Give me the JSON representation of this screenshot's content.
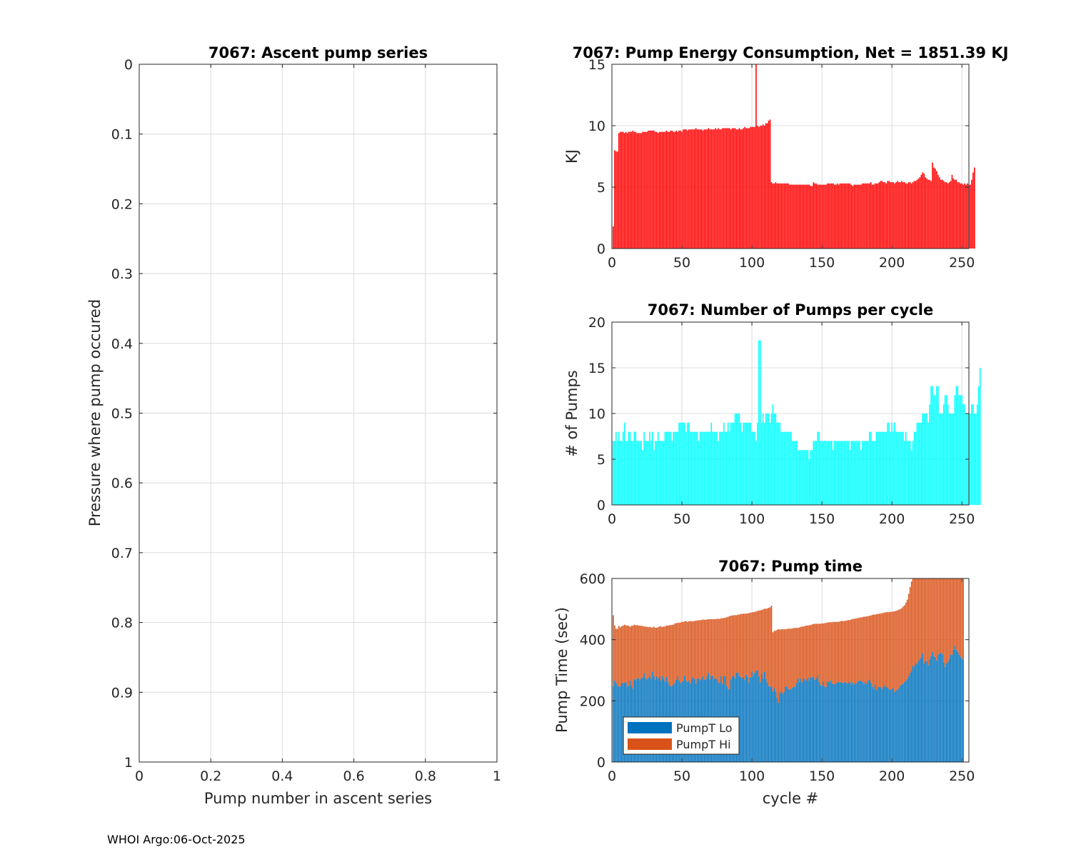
{
  "footer": "WHOI Argo:06-Oct-2025",
  "chart_data": [
    {
      "id": "ascent",
      "type": "line",
      "title": "7067: Ascent pump series",
      "xlabel": "Pump number in ascent series",
      "ylabel": "Pressure where pump occured",
      "xlim": [
        0,
        1
      ],
      "ylim": [
        0,
        1
      ],
      "y_reversed": true,
      "xticks": [
        "0",
        "0.2",
        "0.4",
        "0.6",
        "0.8",
        "1"
      ],
      "yticks": [
        "0",
        "0.1",
        "0.2",
        "0.3",
        "0.4",
        "0.5",
        "0.6",
        "0.7",
        "0.8",
        "0.9",
        "1"
      ],
      "grid": true,
      "series": []
    },
    {
      "id": "energy",
      "type": "bar",
      "title": "7067: Pump Energy Consumption,  Net = 1851.39 KJ",
      "xlabel": "",
      "ylabel": "KJ",
      "xlim": [
        0,
        255
      ],
      "ylim": [
        0,
        15
      ],
      "xticks": [
        "0",
        "50",
        "100",
        "150",
        "200",
        "250"
      ],
      "yticks": [
        "0",
        "5",
        "10",
        "15"
      ],
      "grid": true,
      "color": "#ff0000",
      "x_start": 1,
      "values": [
        1.8,
        8.0,
        7.9,
        7.9,
        9.4,
        9.5,
        9.5,
        9.5,
        9.4,
        9.5,
        9.4,
        9.5,
        9.5,
        9.5,
        9.6,
        9.5,
        9.5,
        9.4,
        9.4,
        9.4,
        9.4,
        9.5,
        9.5,
        9.5,
        9.5,
        9.6,
        9.6,
        9.6,
        9.6,
        9.6,
        9.5,
        9.5,
        9.4,
        9.5,
        9.5,
        9.5,
        9.5,
        9.5,
        9.6,
        9.5,
        9.5,
        9.6,
        9.6,
        9.5,
        9.5,
        9.6,
        9.5,
        9.6,
        9.6,
        9.5,
        9.7,
        9.7,
        9.7,
        9.6,
        9.7,
        9.7,
        9.7,
        9.7,
        9.7,
        9.8,
        9.7,
        9.7,
        9.7,
        9.7,
        9.6,
        9.7,
        9.7,
        9.7,
        9.8,
        9.7,
        9.7,
        9.7,
        9.7,
        9.8,
        9.7,
        9.8,
        9.7,
        9.7,
        9.8,
        9.8,
        9.8,
        9.8,
        9.8,
        9.8,
        9.7,
        9.8,
        9.8,
        9.8,
        9.7,
        9.7,
        9.8,
        9.7,
        9.7,
        9.8,
        9.9,
        9.8,
        9.8,
        9.8,
        9.9,
        9.9,
        9.9,
        9.9,
        15.2,
        10.0,
        9.9,
        10.0,
        10.0,
        10.1,
        10.0,
        10.2,
        10.2,
        10.4,
        10.5,
        5.4,
        5.3,
        5.3,
        5.4,
        5.3,
        5.3,
        5.3,
        5.3,
        5.3,
        5.3,
        5.3,
        5.3,
        5.3,
        5.2,
        5.2,
        5.2,
        5.2,
        5.2,
        5.2,
        5.2,
        5.2,
        5.2,
        5.2,
        5.2,
        5.2,
        5.2,
        5.2,
        5.2,
        5.1,
        5.1,
        5.4,
        5.3,
        5.3,
        5.2,
        5.2,
        5.2,
        5.2,
        5.2,
        5.2,
        5.2,
        5.3,
        5.3,
        5.3,
        5.3,
        5.3,
        5.2,
        5.2,
        5.3,
        5.2,
        5.3,
        5.3,
        5.3,
        5.3,
        5.3,
        5.3,
        5.3,
        5.3,
        5.2,
        5.1,
        5.2,
        5.2,
        5.2,
        5.2,
        5.2,
        5.2,
        5.3,
        5.3,
        5.3,
        5.3,
        5.3,
        5.3,
        5.4,
        5.2,
        5.2,
        5.3,
        5.3,
        5.3,
        5.4,
        5.5,
        5.5,
        5.4,
        5.4,
        5.3,
        5.5,
        5.5,
        5.4,
        5.4,
        5.4,
        5.3,
        5.4,
        5.5,
        5.4,
        5.4,
        5.5,
        5.4,
        5.4,
        5.3,
        5.3,
        5.4,
        5.4,
        5.3,
        5.4,
        5.5,
        5.5,
        5.6,
        5.7,
        5.8,
        6.0,
        6.2,
        6.1,
        5.8,
        5.7,
        5.6,
        5.6,
        5.5,
        7.0,
        6.6,
        6.5,
        6.3,
        6.0,
        5.8,
        5.6,
        5.6,
        5.5,
        5.4,
        5.4,
        5.3,
        5.4,
        5.5,
        6.0,
        5.7,
        5.6,
        5.6,
        5.4,
        5.4,
        5.3,
        5.3,
        5.2,
        5.3,
        5.2,
        5.3,
        5.2,
        5.2,
        5.6,
        6.2,
        6.6
      ]
    },
    {
      "id": "pumps",
      "type": "bar",
      "title": "7067: Number of Pumps per cycle",
      "xlabel": "",
      "ylabel": "# of Pumps",
      "xlim": [
        0,
        255
      ],
      "ylim": [
        0,
        20
      ],
      "xticks": [
        "0",
        "50",
        "100",
        "150",
        "200",
        "250"
      ],
      "yticks": [
        "0",
        "5",
        "10",
        "15",
        "20"
      ],
      "grid": true,
      "color": "#00ffff",
      "x_start": 1,
      "values": [
        7,
        7,
        8,
        7,
        8,
        7,
        7,
        8,
        9,
        7,
        7,
        8,
        8,
        7,
        7,
        8,
        8,
        7,
        7,
        7,
        7,
        6,
        8,
        7,
        7,
        7,
        8,
        7,
        8,
        6,
        7,
        7,
        8,
        7,
        7,
        7,
        7,
        8,
        8,
        8,
        8,
        8,
        7,
        8,
        8,
        8,
        8,
        9,
        9,
        9,
        9,
        9,
        8,
        9,
        9,
        8,
        8,
        8,
        8,
        8,
        8,
        7,
        8,
        8,
        8,
        8,
        8,
        8,
        8,
        8,
        9,
        8,
        8,
        8,
        8,
        7,
        8,
        8,
        8,
        9,
        8,
        8,
        9,
        8,
        9,
        9,
        9,
        10,
        10,
        10,
        10,
        9,
        8,
        9,
        9,
        9,
        9,
        9,
        9,
        8,
        8,
        8,
        7,
        9,
        18,
        18,
        9,
        10,
        9,
        10,
        10,
        10,
        9,
        10,
        11,
        10,
        10,
        9,
        9,
        9,
        8,
        8,
        8,
        8,
        8,
        8,
        8,
        8,
        7,
        7,
        7,
        7,
        6,
        6,
        6,
        6,
        6,
        6,
        6,
        6,
        5,
        6,
        6,
        7,
        7,
        7,
        8,
        8,
        7,
        7,
        7,
        7,
        7,
        7,
        7,
        7,
        7,
        6,
        7,
        7,
        7,
        7,
        7,
        7,
        7,
        7,
        7,
        7,
        7,
        6,
        7,
        7,
        7,
        7,
        7,
        7,
        7,
        6,
        7,
        7,
        7,
        7,
        7,
        8,
        8,
        7,
        7,
        7,
        8,
        8,
        8,
        8,
        8,
        8,
        8,
        8,
        9,
        9,
        8,
        9,
        8,
        9,
        8,
        8,
        8,
        8,
        8,
        8,
        7,
        8,
        7,
        7,
        7,
        6,
        7,
        8,
        8,
        9,
        9,
        9,
        9,
        10,
        10,
        10,
        10,
        9,
        11,
        13,
        13,
        12,
        12,
        13,
        13,
        10,
        10,
        10,
        11,
        12,
        12,
        11,
        10,
        10,
        10,
        10,
        12,
        13,
        13,
        12,
        12,
        12,
        11,
        11,
        10,
        10,
        10,
        10,
        11,
        11,
        10,
        10,
        11,
        13,
        15
      ]
    },
    {
      "id": "pumptime",
      "type": "bar",
      "stacked": true,
      "title": "7067: Pump time",
      "xlabel": "cycle #",
      "ylabel": "Pump Time (sec)",
      "xlim": [
        0,
        255
      ],
      "ylim": [
        0,
        600
      ],
      "xticks": [
        "0",
        "50",
        "100",
        "150",
        "200",
        "250"
      ],
      "yticks": [
        "0",
        "200",
        "400",
        "600"
      ],
      "grid": true,
      "legend": "bottom-left",
      "x_start": 1,
      "series": [
        {
          "name": "PumpT Lo",
          "color": "#0072bd",
          "values": [
            248,
            266,
            258,
            250,
            247,
            248,
            258,
            258,
            259,
            262,
            246,
            250,
            266,
            250,
            241,
            271,
            267,
            272,
            274,
            268,
            273,
            277,
            291,
            275,
            270,
            276,
            282,
            272,
            296,
            280,
            269,
            279,
            273,
            279,
            266,
            281,
            271,
            263,
            278,
            261,
            252,
            248,
            249,
            254,
            259,
            269,
            280,
            267,
            258,
            262,
            266,
            283,
            265,
            262,
            266,
            257,
            272,
            278,
            271,
            257,
            273,
            273,
            268,
            271,
            280,
            269,
            270,
            279,
            291,
            270,
            283,
            283,
            271,
            276,
            271,
            258,
            261,
            282,
            256,
            281,
            280,
            249,
            239,
            237,
            270,
            280,
            282,
            274,
            292,
            292,
            282,
            278,
            274,
            278,
            270,
            285,
            277,
            259,
            277,
            296,
            280,
            291,
            299,
            299,
            280,
            261,
            290,
            273,
            295,
            271,
            260,
            249,
            247,
            246,
            230,
            241,
            229,
            210,
            194,
            228,
            230,
            223,
            229,
            247,
            247,
            239,
            236,
            238,
            243,
            246,
            245,
            258,
            272,
            262,
            273,
            261,
            275,
            270,
            266,
            276,
            267,
            276,
            278,
            277,
            269,
            273,
            284,
            262,
            252,
            249,
            263,
            246,
            245,
            264,
            261,
            266,
            259,
            255,
            254,
            257,
            261,
            261,
            262,
            260,
            258,
            261,
            260,
            257,
            258,
            263,
            254,
            260,
            253,
            258,
            258,
            264,
            266,
            266,
            262,
            255,
            263,
            256,
            267,
            270,
            260,
            246,
            240,
            254,
            235,
            244,
            246,
            244,
            239,
            245,
            251,
            244,
            244,
            238,
            236,
            240,
            242,
            229,
            234,
            236,
            241,
            250,
            253,
            256,
            262,
            266,
            271,
            280,
            292,
            298,
            315,
            312,
            324,
            320,
            330,
            338,
            342,
            355,
            321,
            330,
            330,
            317,
            336,
            346,
            360,
            346,
            342,
            332,
            352,
            354,
            357,
            353,
            326,
            311,
            322,
            327,
            336,
            351,
            350,
            367,
            380,
            367,
            360,
            352,
            345,
            339,
            336
          ]
        },
        {
          "name": "PumpT Hi",
          "color": "#d95319",
          "values": [
            232,
            180,
            178,
            185,
            198,
            192,
            186,
            188,
            190,
            185,
            200,
            195,
            176,
            195,
            205,
            178,
            180,
            176,
            172,
            178,
            172,
            168,
            152,
            168,
            172,
            165,
            160,
            168,
            144,
            162,
            170,
            160,
            168,
            164,
            178,
            160,
            172,
            180,
            168,
            185,
            195,
            200,
            199,
            195,
            194,
            185,
            175,
            188,
            198,
            196,
            192,
            177,
            195,
            196,
            194,
            204,
            188,
            182,
            190,
            205,
            190,
            190,
            196,
            193,
            186,
            196,
            195,
            187,
            176,
            197,
            184,
            184,
            196,
            191,
            197,
            210,
            207,
            188,
            214,
            190,
            192,
            224,
            236,
            240,
            208,
            199,
            198,
            206,
            188,
            190,
            200,
            206,
            210,
            207,
            215,
            200,
            209,
            228,
            211,
            193,
            210,
            200,
            193,
            195,
            215,
            235,
            207,
            226,
            206,
            230,
            242,
            255,
            259,
            265,
            194,
            188,
            200,
            222,
            240,
            205,
            204,
            211,
            205,
            187,
            188,
            197,
            200,
            198,
            194,
            192,
            194,
            180,
            167,
            178,
            169,
            182,
            168,
            175,
            180,
            170,
            180,
            172,
            172,
            174,
            183,
            179,
            168,
            190,
            200,
            204,
            190,
            208,
            210,
            192,
            196,
            191,
            198,
            203,
            204,
            201,
            197,
            197,
            198,
            201,
            203,
            200,
            202,
            206,
            206,
            201,
            212,
            208,
            215,
            211,
            212,
            207,
            206,
            207,
            212,
            220,
            212,
            220,
            210,
            208,
            219,
            235,
            242,
            228,
            248,
            240,
            239,
            241,
            248,
            242,
            238,
            246,
            246,
            252,
            255,
            251,
            250,
            264,
            260,
            260,
            257,
            250,
            250,
            252,
            250,
            255,
            260,
            270,
            280,
            292,
            285,
            290,
            280,
            287,
            280,
            275,
            285,
            275,
            320,
            315,
            320,
            330,
            310,
            305,
            290,
            300,
            310,
            320,
            300,
            298,
            295,
            300,
            325,
            340,
            330,
            325,
            318,
            305,
            305,
            290,
            280,
            295,
            300,
            310,
            320,
            330,
            340
          ]
        }
      ]
    }
  ]
}
